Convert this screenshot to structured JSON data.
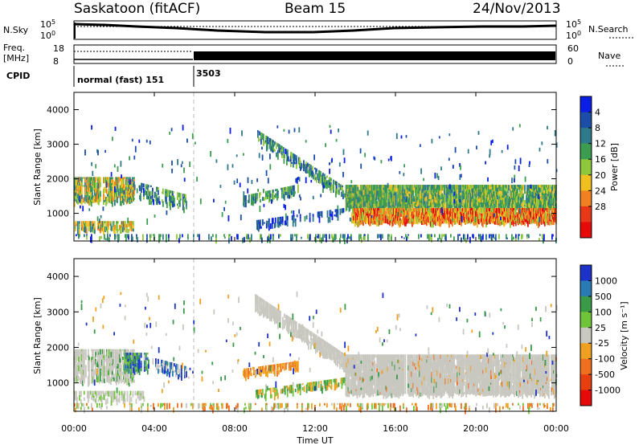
{
  "header": {
    "station": "Saskatoon (fitACF)",
    "beam": "Beam 15",
    "date": "24/Nov/2013"
  },
  "panels": {
    "nsky": {
      "label": "N.Sky",
      "tick_top": "10^5",
      "tick_bottom": "10^0"
    },
    "nsearch": {
      "label": "N.Search",
      "tick_top": "10^5",
      "tick_bottom": "10^0"
    },
    "freq": {
      "label_1": "Freq.",
      "label_2": "[MHz]",
      "tick_top": "18",
      "tick_bottom": "8"
    },
    "nave": {
      "label": "Nave",
      "tick_top": "60",
      "tick_bottom": "0"
    },
    "cpid": {
      "label": "CPID",
      "mode_1": "normal (fast) 151",
      "mode_2": "3503"
    }
  },
  "chart_data": [
    {
      "type": "heatmap",
      "name": "power",
      "ylabel": "Slant Range [km]",
      "ylim": [
        200,
        4500
      ],
      "yticks": [
        "1000",
        "2000",
        "3000",
        "4000"
      ],
      "colorbar_label": "Power [dB]",
      "colorbar_ticks": [
        "4",
        "8",
        "12",
        "16",
        "20",
        "24",
        "28"
      ],
      "colors": [
        "#0a1ee6",
        "#1c4ea8",
        "#2f7a8a",
        "#3c9c50",
        "#8ec63c",
        "#f0c020",
        "#f08020",
        "#e83818",
        "#e60a0a"
      ]
    },
    {
      "type": "heatmap",
      "name": "velocity",
      "ylabel": "Slant Range [km]",
      "ylim": [
        200,
        4500
      ],
      "yticks": [
        "1000",
        "2000",
        "3000",
        "4000"
      ],
      "colorbar_label": "Velocity [m s⁻¹]",
      "colorbar_ticks": [
        "1000",
        "500",
        "100",
        "25",
        "-25",
        "-100",
        "-500",
        "-1000"
      ],
      "colors": [
        "#1c32c8",
        "#2a7ab4",
        "#3a9a48",
        "#70c43a",
        "#c8c8c0",
        "#f0a020",
        "#f07020",
        "#e64010",
        "#e60a0a"
      ]
    }
  ],
  "x_axis": {
    "label": "Time UT",
    "ticks": [
      "00:00",
      "04:00",
      "08:00",
      "12:00",
      "16:00",
      "20:00",
      "00:00"
    ]
  }
}
